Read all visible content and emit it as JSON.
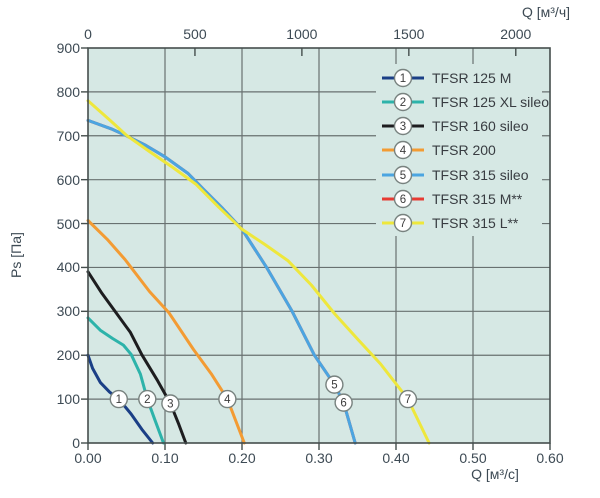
{
  "chart_data": {
    "type": "line",
    "xlabel_top": "Q [м³/ч]",
    "xlabel_bottom": "Q [м³/c]",
    "ylabel": "Ps [Па]",
    "xlim": [
      0,
      0.6
    ],
    "xlim_top": [
      0,
      2160
    ],
    "ylim": [
      0,
      900
    ],
    "x_ticks_bottom": [
      0,
      0.1,
      0.2,
      0.3,
      0.4,
      0.5,
      0.6
    ],
    "x_tick_labels_bottom": [
      "0.00",
      "0.10",
      "0.20",
      "0.30",
      "0.40",
      "0.50",
      "0.60"
    ],
    "x_ticks_top": [
      0,
      500,
      1000,
      1500,
      2000
    ],
    "y_ticks": [
      0,
      100,
      200,
      300,
      400,
      500,
      600,
      700,
      800,
      900
    ],
    "grid": true,
    "legend_position": "top-right-inside",
    "plot_bg": "#d6e8e4",
    "grid_color": "#687170",
    "axis_color": "#454e4d",
    "marker_circle_fill": "#ffffff",
    "marker_circle_stroke": "#78827f",
    "marker_number_color": "#3c3c3c",
    "legend_text_color": "#383c41",
    "series": [
      {
        "num": "1",
        "label": "TFSR 125 M",
        "color": "#1b3f86",
        "marker": [
          0.04,
          100
        ],
        "points": [
          [
            0,
            200
          ],
          [
            0.006,
            170
          ],
          [
            0.016,
            138
          ],
          [
            0.028,
            116
          ],
          [
            0.04,
            100
          ],
          [
            0.056,
            66
          ],
          [
            0.07,
            31
          ],
          [
            0.084,
            0
          ]
        ]
      },
      {
        "num": "2",
        "label": "TFSR 125 XL sileo",
        "color": "#2db3aa",
        "marker": [
          0.077,
          100
        ],
        "points": [
          [
            0,
            285
          ],
          [
            0.016,
            257
          ],
          [
            0.032,
            238
          ],
          [
            0.046,
            223
          ],
          [
            0.056,
            202
          ],
          [
            0.068,
            157
          ],
          [
            0.077,
            100
          ],
          [
            0.087,
            52
          ],
          [
            0.098,
            0
          ]
        ]
      },
      {
        "num": "3",
        "label": "TFSR 160 sileo",
        "color": "#1d1d1f",
        "marker": [
          0.107,
          90
        ],
        "points": [
          [
            0,
            390
          ],
          [
            0.018,
            341
          ],
          [
            0.035,
            300
          ],
          [
            0.055,
            252
          ],
          [
            0.07,
            201
          ],
          [
            0.09,
            143
          ],
          [
            0.107,
            90
          ],
          [
            0.118,
            42
          ],
          [
            0.127,
            0
          ]
        ]
      },
      {
        "num": "4",
        "label": "TFSR 200",
        "color": "#f39b33",
        "marker": [
          0.181,
          100
        ],
        "points": [
          [
            0,
            507
          ],
          [
            0.025,
            464
          ],
          [
            0.048,
            418
          ],
          [
            0.08,
            345
          ],
          [
            0.105,
            297
          ],
          [
            0.137,
            213
          ],
          [
            0.16,
            158
          ],
          [
            0.181,
            100
          ],
          [
            0.203,
            0
          ]
        ]
      },
      {
        "num": "5",
        "label": "TFSR 315 sileo",
        "color": "#4ba5e1",
        "marker": [
          0.32,
          133
        ],
        "points": [
          [
            0,
            735
          ],
          [
            0.03,
            716
          ],
          [
            0.05,
            700
          ],
          [
            0.075,
            678
          ],
          [
            0.1,
            652
          ],
          [
            0.13,
            614
          ],
          [
            0.15,
            578
          ],
          [
            0.175,
            534
          ],
          [
            0.2,
            487
          ],
          [
            0.232,
            400
          ],
          [
            0.265,
            300
          ],
          [
            0.294,
            200
          ],
          [
            0.32,
            133
          ],
          [
            0.332,
            92
          ],
          [
            0.347,
            0
          ]
        ]
      },
      {
        "num": "6",
        "label": "TFSR 315 M**",
        "color": "#e73b33",
        "marker": [
          0.332,
          92
        ],
        "points": [
          [
            0,
            735
          ],
          [
            0.03,
            716
          ],
          [
            0.05,
            700
          ],
          [
            0.075,
            678
          ],
          [
            0.1,
            652
          ],
          [
            0.13,
            614
          ],
          [
            0.15,
            578
          ],
          [
            0.175,
            534
          ],
          [
            0.2,
            487
          ],
          [
            0.232,
            400
          ],
          [
            0.265,
            300
          ],
          [
            0.294,
            200
          ],
          [
            0.32,
            133
          ],
          [
            0.332,
            92
          ],
          [
            0.347,
            0
          ]
        ]
      },
      {
        "num": "7",
        "label": "TFSR 315 L**",
        "color": "#eee73c",
        "marker": [
          0.4155,
          100
        ],
        "points": [
          [
            0,
            780
          ],
          [
            0.03,
            733
          ],
          [
            0.05,
            701
          ],
          [
            0.08,
            664
          ],
          [
            0.11,
            628
          ],
          [
            0.14,
            590
          ],
          [
            0.17,
            537
          ],
          [
            0.2,
            487
          ],
          [
            0.23,
            452
          ],
          [
            0.26,
            415
          ],
          [
            0.29,
            360
          ],
          [
            0.32,
            295
          ],
          [
            0.35,
            237
          ],
          [
            0.38,
            180
          ],
          [
            0.4155,
            100
          ],
          [
            0.443,
            0
          ]
        ]
      }
    ]
  }
}
